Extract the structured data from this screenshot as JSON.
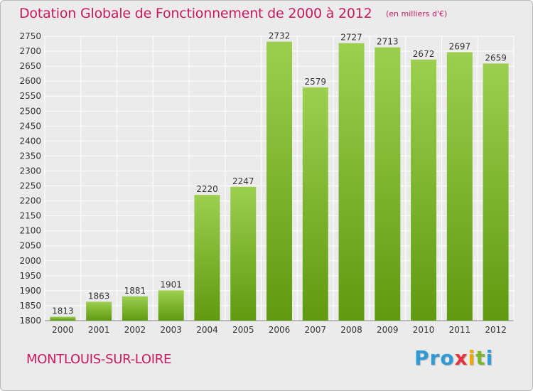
{
  "header": {
    "title": "Dotation Globale de Fonctionnement de 2000 à 2012",
    "subtitle": "(en milliers d'€)"
  },
  "footer": {
    "commune": "MONTLOUIS-SUR-LOIRE",
    "logo_letters": [
      {
        "ch": "P",
        "color": "#2e9bd6"
      },
      {
        "ch": "r",
        "color": "#2e9bd6"
      },
      {
        "ch": "o",
        "color": "#2e9bd6"
      },
      {
        "ch": "x",
        "color": "#e5323b"
      },
      {
        "ch": "i",
        "color": "#f0a800"
      },
      {
        "ch": "t",
        "color": "#7cb82f"
      },
      {
        "ch": "i",
        "color": "#2e9bd6"
      }
    ]
  },
  "colors": {
    "title": "#c8195f",
    "bar_top": "#9ccf4f",
    "bar_bottom": "#5f9a10",
    "background": "#ebebeb",
    "grid": "#ffffff"
  },
  "chart_data": {
    "type": "bar",
    "title": "Dotation Globale de Fonctionnement de 2000 à 2012",
    "subtitle": "(en milliers d'€)",
    "categories": [
      "2000",
      "2001",
      "2002",
      "2003",
      "2004",
      "2005",
      "2006",
      "2007",
      "2008",
      "2009",
      "2010",
      "2011",
      "2012"
    ],
    "values": [
      1813,
      1863,
      1881,
      1901,
      2220,
      2247,
      2732,
      2579,
      2727,
      2713,
      2672,
      2697,
      2659
    ],
    "ylim": [
      1800,
      2750
    ],
    "ytick_step": 50,
    "grid": true,
    "data_labels": true
  }
}
